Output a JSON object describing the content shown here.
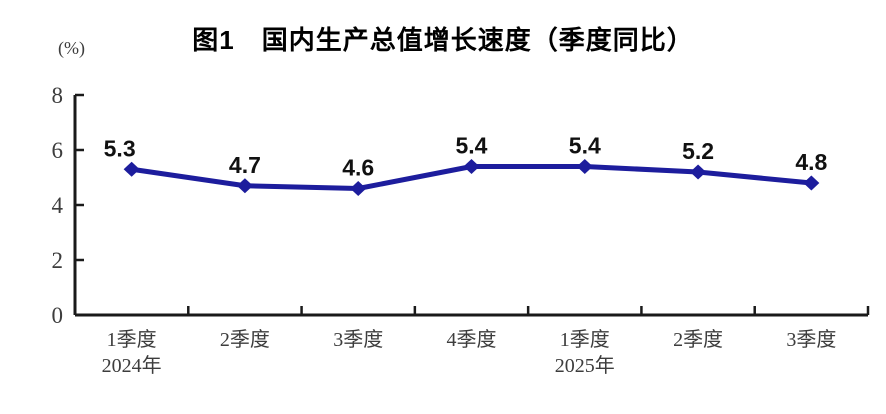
{
  "chart": {
    "title": "图1　国内生产总值增长速度（季度同比）",
    "unit_label": "(%)"
  },
  "chart_data": {
    "type": "line",
    "title": "图1　国内生产总值增长速度（季度同比）",
    "ylabel": "(%)",
    "xlabel": "",
    "categories": [
      "1季度",
      "2季度",
      "3季度",
      "4季度",
      "1季度",
      "2季度",
      "3季度"
    ],
    "category_years": [
      "2024年",
      "",
      "",
      "",
      "2025年",
      "",
      ""
    ],
    "values": [
      5.3,
      4.7,
      4.6,
      5.4,
      5.4,
      5.2,
      4.8
    ],
    "data_labels": [
      "5.3",
      "4.7",
      "4.6",
      "5.4",
      "5.4",
      "5.2",
      "4.8"
    ],
    "data_label_dx": [
      -12,
      0,
      0,
      0,
      0,
      0,
      0
    ],
    "ylim": [
      0,
      8
    ],
    "y_ticks": [
      0,
      2,
      4,
      6,
      8
    ],
    "grid": false,
    "legend": false,
    "marker": "diamond",
    "line_color": "#1d1d9d",
    "axis_color": "#1a1a1a",
    "tick_text_color": "#3d3d3d",
    "data_label_color": "#111111"
  }
}
